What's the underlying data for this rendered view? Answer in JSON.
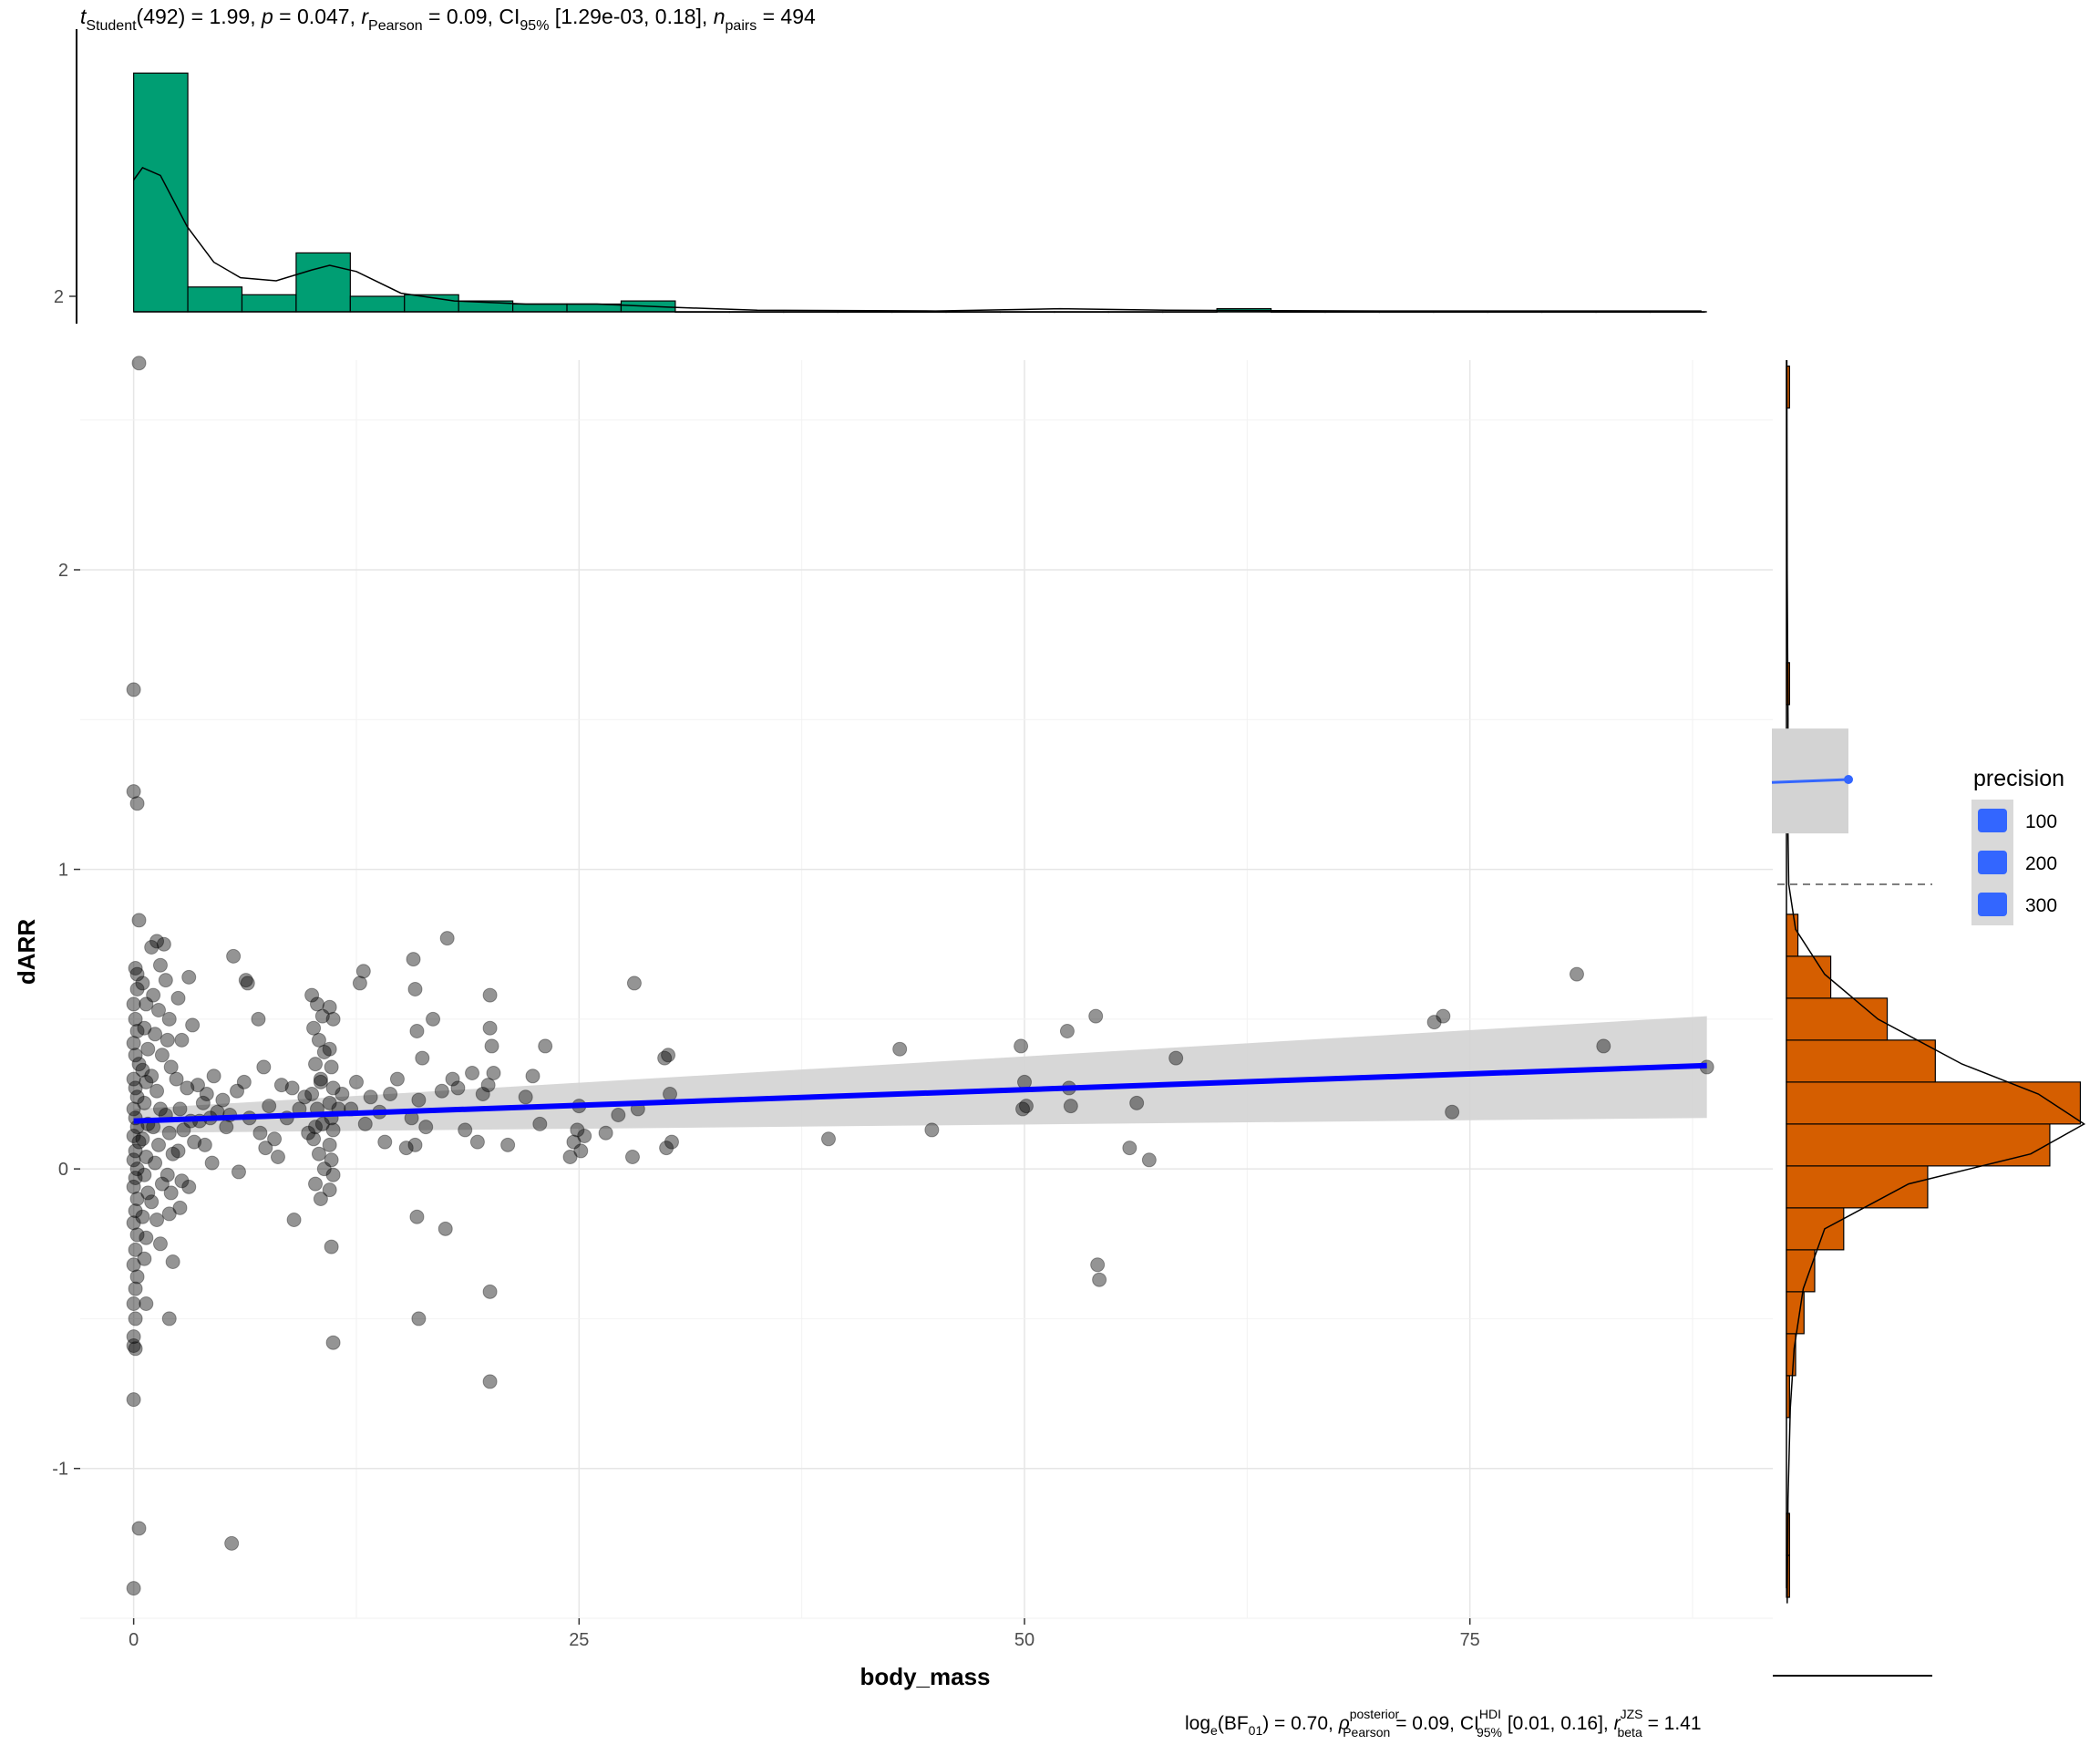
{
  "chart_data": {
    "type": "scatter",
    "subtitle_top": {
      "t_label": "t",
      "t_sub": "Student",
      "t_rest": "(492) = 1.99, ",
      "p_label": "p",
      "p_rest": " = 0.047, ",
      "r_label": "r",
      "r_sub": "Pearson",
      "r_rest": " = 0.09, CI",
      "ci_sub": "95%",
      "ci_rest": " [1.29e-03, 0.18], ",
      "n_label": "n",
      "n_sub": "pairs",
      "n_rest": " = 494"
    },
    "caption_bottom": {
      "part1": "log",
      "part1_sub": "e",
      "part2": "(BF",
      "part2_sub": "01",
      "part3": ") = 0.70, ",
      "rho": "ρ",
      "rho_sup": "posterior",
      "rho_sub": "Pearson",
      "part4": " = 0.09, CI",
      "ci_sup": "HDI",
      "ci_sub": "95%",
      "part5": " [0.01, 0.16], ",
      "r_label": "r",
      "r_sup": "JZS",
      "r_sub": "beta",
      "part6": " = 1.41"
    },
    "xlabel": "body_mass",
    "ylabel": "dARR",
    "xlim": [
      -3,
      92
    ],
    "ylim": [
      -1.5,
      2.7
    ],
    "xticks": [
      0,
      25,
      50,
      75
    ],
    "yticks": [
      -1,
      0,
      1,
      2
    ],
    "grid": true,
    "colors": {
      "points": "#000000",
      "fit_line": "#0000ff",
      "ribbon": "#d3d3d3",
      "top_hist": "#009e73",
      "right_hist": "#d55e00",
      "legend_key": "#3366ff"
    },
    "regression": {
      "x": [
        0,
        88.3
      ],
      "y": [
        0.16,
        0.345
      ],
      "ci_lower": [
        0.12,
        0.17
      ],
      "ci_upper": [
        0.2,
        0.51
      ]
    },
    "top_histogram": {
      "tick_label": "2",
      "bin_start": 0,
      "bin_width": 3.04,
      "counts": [
        15.4,
        1.6,
        1.1,
        3.8,
        1.0,
        1.1,
        0.7,
        0.5,
        0.5,
        0.7,
        0,
        0,
        0,
        0,
        0,
        0,
        0,
        0,
        0,
        0,
        0.2,
        0,
        0,
        0,
        0,
        0,
        0,
        0,
        0
      ],
      "density": [
        [
          0,
          8.5
        ],
        [
          0.5,
          9.3
        ],
        [
          1.5,
          8.8
        ],
        [
          3,
          5.5
        ],
        [
          4.5,
          3.2
        ],
        [
          6,
          2.2
        ],
        [
          8,
          2.0
        ],
        [
          10,
          2.7
        ],
        [
          11,
          3.0
        ],
        [
          12.5,
          2.6
        ],
        [
          15,
          1.2
        ],
        [
          18,
          0.7
        ],
        [
          22,
          0.5
        ],
        [
          26,
          0.5
        ],
        [
          30,
          0.3
        ],
        [
          35,
          0.1
        ],
        [
          45,
          0.05
        ],
        [
          52,
          0.2
        ],
        [
          58,
          0.1
        ],
        [
          70,
          0.05
        ],
        [
          88,
          0.05
        ]
      ]
    },
    "right_histogram": {
      "bin_width": 0.14,
      "bins": [
        {
          "y": -1.36,
          "count": 0.4
        },
        {
          "y": -1.22,
          "count": 0.4
        },
        {
          "y": -0.76,
          "count": 0.4
        },
        {
          "y": -0.62,
          "count": 1.2
        },
        {
          "y": -0.48,
          "count": 2.3
        },
        {
          "y": -0.34,
          "count": 3.7
        },
        {
          "y": -0.2,
          "count": 7.5
        },
        {
          "y": -0.06,
          "count": 18.5
        },
        {
          "y": 0.08,
          "count": 34.5
        },
        {
          "y": 0.22,
          "count": 38.5
        },
        {
          "y": 0.36,
          "count": 19.5
        },
        {
          "y": 0.5,
          "count": 13.2
        },
        {
          "y": 0.64,
          "count": 5.8
        },
        {
          "y": 0.78,
          "count": 1.5
        },
        {
          "y": 1.34,
          "count": 0.4
        },
        {
          "y": 1.62,
          "count": 0.4
        },
        {
          "y": 2.61,
          "count": 0.4
        }
      ],
      "density": [
        [
          -1.45,
          0.1
        ],
        [
          -1.1,
          0.2
        ],
        [
          -0.8,
          0.5
        ],
        [
          -0.6,
          1.0
        ],
        [
          -0.4,
          2.2
        ],
        [
          -0.2,
          5.0
        ],
        [
          -0.05,
          16.0
        ],
        [
          0.05,
          32.0
        ],
        [
          0.15,
          39.0
        ],
        [
          0.25,
          33.0
        ],
        [
          0.35,
          23.0
        ],
        [
          0.5,
          12.0
        ],
        [
          0.65,
          5.0
        ],
        [
          0.8,
          1.2
        ],
        [
          0.95,
          0.3
        ],
        [
          1.2,
          0.15
        ],
        [
          1.5,
          0.2
        ],
        [
          2.0,
          0.1
        ],
        [
          2.7,
          0.05
        ]
      ]
    },
    "legend": {
      "title": "precision",
      "items": [
        "100",
        "200",
        "300"
      ]
    },
    "inset": {
      "line_y": [
        1.29,
        1.3
      ],
      "band": [
        1.12,
        1.47
      ],
      "dashed_y": 0.95
    },
    "points": [
      [
        0.0,
        1.6
      ],
      [
        0.0,
        1.26
      ],
      [
        0.2,
        1.22
      ],
      [
        0.3,
        2.69
      ],
      [
        0.3,
        0.83
      ],
      [
        0.0,
        -0.77
      ],
      [
        0.0,
        -1.4
      ],
      [
        0.3,
        -1.2
      ],
      [
        5.5,
        -1.25
      ],
      [
        0.1,
        0.67
      ],
      [
        0.2,
        0.65
      ],
      [
        0.2,
        0.6
      ],
      [
        0.0,
        0.55
      ],
      [
        0.1,
        0.5
      ],
      [
        0.2,
        0.46
      ],
      [
        0.0,
        0.42
      ],
      [
        0.1,
        0.38
      ],
      [
        0.3,
        0.35
      ],
      [
        0.0,
        0.3
      ],
      [
        0.1,
        0.27
      ],
      [
        0.2,
        0.24
      ],
      [
        0.0,
        0.2
      ],
      [
        0.1,
        0.17
      ],
      [
        0.2,
        0.14
      ],
      [
        0.0,
        0.11
      ],
      [
        0.3,
        0.09
      ],
      [
        0.1,
        0.06
      ],
      [
        0.0,
        0.03
      ],
      [
        0.2,
        0.0
      ],
      [
        0.1,
        -0.03
      ],
      [
        0.0,
        -0.06
      ],
      [
        0.2,
        -0.1
      ],
      [
        0.1,
        -0.14
      ],
      [
        0.0,
        -0.18
      ],
      [
        0.2,
        -0.22
      ],
      [
        0.1,
        -0.27
      ],
      [
        0.0,
        -0.32
      ],
      [
        0.2,
        -0.36
      ],
      [
        0.1,
        -0.4
      ],
      [
        0.0,
        -0.45
      ],
      [
        0.1,
        -0.5
      ],
      [
        0.0,
        -0.56
      ],
      [
        0.0,
        -0.59
      ],
      [
        0.1,
        -0.6
      ],
      [
        0.5,
        0.62
      ],
      [
        0.7,
        0.55
      ],
      [
        0.6,
        0.47
      ],
      [
        0.8,
        0.4
      ],
      [
        0.5,
        0.33
      ],
      [
        0.7,
        0.29
      ],
      [
        0.6,
        0.22
      ],
      [
        0.8,
        0.15
      ],
      [
        0.5,
        0.1
      ],
      [
        0.7,
        0.04
      ],
      [
        0.6,
        -0.02
      ],
      [
        0.8,
        -0.08
      ],
      [
        0.5,
        -0.16
      ],
      [
        0.7,
        -0.23
      ],
      [
        0.6,
        -0.3
      ],
      [
        0.7,
        -0.45
      ],
      [
        1.0,
        0.74
      ],
      [
        1.3,
        0.76
      ],
      [
        1.5,
        0.68
      ],
      [
        1.1,
        0.58
      ],
      [
        1.4,
        0.53
      ],
      [
        1.2,
        0.45
      ],
      [
        1.6,
        0.38
      ],
      [
        1.0,
        0.31
      ],
      [
        1.3,
        0.26
      ],
      [
        1.5,
        0.2
      ],
      [
        1.1,
        0.14
      ],
      [
        1.4,
        0.08
      ],
      [
        1.2,
        0.02
      ],
      [
        1.6,
        -0.05
      ],
      [
        1.0,
        -0.11
      ],
      [
        1.3,
        -0.17
      ],
      [
        1.5,
        -0.25
      ],
      [
        1.7,
        0.75
      ],
      [
        1.8,
        0.63
      ],
      [
        2.0,
        0.5
      ],
      [
        1.9,
        0.43
      ],
      [
        2.1,
        0.34
      ],
      [
        1.8,
        0.18
      ],
      [
        2.0,
        0.12
      ],
      [
        2.2,
        0.05
      ],
      [
        1.9,
        -0.02
      ],
      [
        2.1,
        -0.08
      ],
      [
        2.0,
        -0.15
      ],
      [
        2.2,
        -0.31
      ],
      [
        2.0,
        -0.5
      ],
      [
        2.5,
        0.57
      ],
      [
        2.7,
        0.43
      ],
      [
        2.4,
        0.3
      ],
      [
        2.6,
        0.2
      ],
      [
        2.8,
        0.13
      ],
      [
        2.5,
        0.06
      ],
      [
        2.7,
        -0.04
      ],
      [
        2.6,
        -0.13
      ],
      [
        3.1,
        0.64
      ],
      [
        3.3,
        0.48
      ],
      [
        3.0,
        0.27
      ],
      [
        3.2,
        0.16
      ],
      [
        3.4,
        0.09
      ],
      [
        3.1,
        -0.06
      ],
      [
        3.6,
        0.28
      ],
      [
        3.9,
        0.22
      ],
      [
        3.7,
        0.16
      ],
      [
        4.1,
        0.25
      ],
      [
        4.3,
        0.17
      ],
      [
        4.0,
        0.08
      ],
      [
        4.5,
        0.31
      ],
      [
        4.7,
        0.19
      ],
      [
        4.4,
        0.02
      ],
      [
        5.0,
        0.23
      ],
      [
        5.2,
        0.14
      ],
      [
        5.6,
        0.71
      ],
      [
        5.8,
        0.26
      ],
      [
        5.4,
        0.18
      ],
      [
        5.9,
        -0.01
      ],
      [
        6.2,
        0.29
      ],
      [
        6.5,
        0.17
      ],
      [
        7.0,
        0.5
      ],
      [
        7.3,
        0.34
      ],
      [
        7.6,
        0.21
      ],
      [
        7.1,
        0.12
      ],
      [
        7.4,
        0.07
      ],
      [
        7.9,
        0.1
      ],
      [
        8.3,
        0.28
      ],
      [
        8.6,
        0.17
      ],
      [
        8.1,
        0.04
      ],
      [
        8.9,
        0.27
      ],
      [
        9.3,
        0.2
      ],
      [
        9.0,
        -0.17
      ],
      [
        9.6,
        0.24
      ],
      [
        9.8,
        0.12
      ],
      [
        10.2,
        0.14
      ],
      [
        10.5,
        0.29
      ],
      [
        12.7,
        0.62
      ],
      [
        12.9,
        0.66
      ],
      [
        6.3,
        0.63
      ],
      [
        6.4,
        0.62
      ],
      [
        10.0,
        0.58
      ],
      [
        10.3,
        0.55
      ],
      [
        10.6,
        0.51
      ],
      [
        10.1,
        0.47
      ],
      [
        10.4,
        0.43
      ],
      [
        10.7,
        0.39
      ],
      [
        10.2,
        0.35
      ],
      [
        10.5,
        0.3
      ],
      [
        10.0,
        0.25
      ],
      [
        10.3,
        0.2
      ],
      [
        10.6,
        0.15
      ],
      [
        10.1,
        0.1
      ],
      [
        10.4,
        0.05
      ],
      [
        10.7,
        0.0
      ],
      [
        10.2,
        -0.05
      ],
      [
        10.5,
        -0.1
      ],
      [
        11.0,
        0.54
      ],
      [
        11.2,
        0.5
      ],
      [
        11.0,
        0.4
      ],
      [
        11.1,
        0.34
      ],
      [
        11.2,
        0.27
      ],
      [
        11.0,
        0.22
      ],
      [
        11.1,
        0.17
      ],
      [
        11.2,
        0.13
      ],
      [
        11.0,
        0.08
      ],
      [
        11.1,
        0.03
      ],
      [
        11.2,
        -0.02
      ],
      [
        11.0,
        -0.07
      ],
      [
        11.1,
        -0.26
      ],
      [
        11.2,
        -0.58
      ],
      [
        11.5,
        0.2
      ],
      [
        11.7,
        0.25
      ],
      [
        12.2,
        0.2
      ],
      [
        12.5,
        0.29
      ],
      [
        13.0,
        0.15
      ],
      [
        13.3,
        0.24
      ],
      [
        13.8,
        0.19
      ],
      [
        14.1,
        0.09
      ],
      [
        14.4,
        0.25
      ],
      [
        14.8,
        0.3
      ],
      [
        15.3,
        0.07
      ],
      [
        15.6,
        0.17
      ],
      [
        15.9,
        0.46
      ],
      [
        16.2,
        0.37
      ],
      [
        16.0,
        0.23
      ],
      [
        15.8,
        0.08
      ],
      [
        16.4,
        0.14
      ],
      [
        15.7,
        0.7
      ],
      [
        15.8,
        0.6
      ],
      [
        15.9,
        -0.16
      ],
      [
        16.0,
        -0.5
      ],
      [
        16.8,
        0.5
      ],
      [
        17.3,
        0.26
      ],
      [
        17.6,
        0.77
      ],
      [
        17.9,
        0.3
      ],
      [
        17.5,
        -0.2
      ],
      [
        18.2,
        0.27
      ],
      [
        18.6,
        0.13
      ],
      [
        19.0,
        0.32
      ],
      [
        19.3,
        0.09
      ],
      [
        19.6,
        0.25
      ],
      [
        19.9,
        0.28
      ],
      [
        20.0,
        0.58
      ],
      [
        20.0,
        0.47
      ],
      [
        20.1,
        0.41
      ],
      [
        20.2,
        0.32
      ],
      [
        20.0,
        -0.41
      ],
      [
        20.0,
        -0.71
      ],
      [
        21.0,
        0.08
      ],
      [
        22.0,
        0.24
      ],
      [
        22.4,
        0.31
      ],
      [
        22.8,
        0.15
      ],
      [
        23.1,
        0.41
      ],
      [
        24.5,
        0.04
      ],
      [
        24.7,
        0.09
      ],
      [
        24.9,
        0.13
      ],
      [
        25.1,
        0.06
      ],
      [
        25.3,
        0.11
      ],
      [
        25.0,
        0.21
      ],
      [
        26.5,
        0.12
      ],
      [
        27.2,
        0.18
      ],
      [
        28.0,
        0.04
      ],
      [
        28.1,
        0.62
      ],
      [
        28.3,
        0.2
      ],
      [
        29.8,
        0.37
      ],
      [
        29.9,
        0.07
      ],
      [
        30.0,
        0.38
      ],
      [
        30.1,
        0.25
      ],
      [
        30.2,
        0.09
      ],
      [
        39.0,
        0.1
      ],
      [
        43.0,
        0.4
      ],
      [
        44.8,
        0.13
      ],
      [
        49.8,
        0.41
      ],
      [
        49.9,
        0.2
      ],
      [
        50.0,
        0.29
      ],
      [
        50.1,
        0.21
      ],
      [
        52.4,
        0.46
      ],
      [
        52.5,
        0.27
      ],
      [
        52.6,
        0.21
      ],
      [
        54.0,
        0.51
      ],
      [
        54.1,
        -0.32
      ],
      [
        54.2,
        -0.37
      ],
      [
        55.9,
        0.07
      ],
      [
        56.3,
        0.22
      ],
      [
        57.0,
        0.03
      ],
      [
        58.5,
        0.37
      ],
      [
        73.0,
        0.49
      ],
      [
        73.5,
        0.51
      ],
      [
        74.0,
        0.19
      ],
      [
        81.0,
        0.65
      ],
      [
        82.5,
        0.41
      ],
      [
        88.3,
        0.34
      ]
    ]
  }
}
